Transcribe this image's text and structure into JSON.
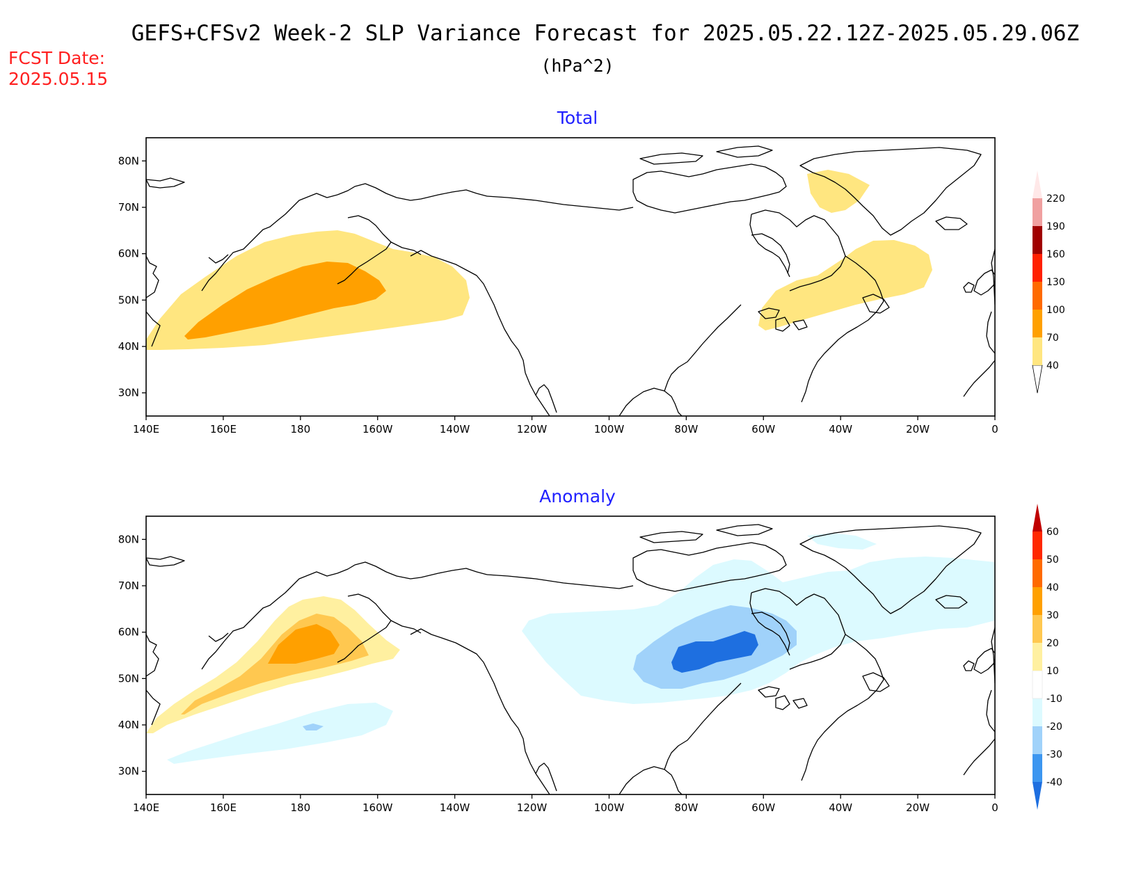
{
  "header": {
    "title": "GEFS+CFSv2 Week-2 SLP Variance Forecast for 2025.05.22.12Z-2025.05.29.06Z",
    "units": "(hPa^2)",
    "fcst_label": "FCST Date:",
    "fcst_date": "2025.05.15"
  },
  "axes": {
    "lon_labels": [
      "140E",
      "160E",
      "180",
      "160W",
      "140W",
      "120W",
      "100W",
      "80W",
      "60W",
      "40W",
      "20W",
      "0"
    ],
    "lat_labels": [
      "30N",
      "40N",
      "50N",
      "60N",
      "70N",
      "80N"
    ],
    "lon_range": [
      140,
      360
    ],
    "lat_range": [
      25,
      85
    ]
  },
  "panels": [
    {
      "title": "Total",
      "colorbar": {
        "labels": [
          "40",
          "70",
          "100",
          "130",
          "160",
          "190",
          "220"
        ],
        "colors": [
          "#ffe680",
          "#ffa000",
          "#ff6a00",
          "#ff2000",
          "#a00000",
          "#f0a0a0",
          "#ffe8e8"
        ]
      },
      "contours": [
        {
          "level": 40,
          "color": "#ffe680",
          "regions": [
            "North Pacific 40-60N",
            "North Atlantic 40-60N",
            "Greenland 70-77N"
          ]
        },
        {
          "level": 70,
          "color": "#ffa000",
          "regions": [
            "North Pacific 42-58N"
          ]
        }
      ]
    },
    {
      "title": "Anomaly",
      "colorbar": {
        "labels": [
          "-40",
          "-30",
          "-20",
          "-10",
          "10",
          "20",
          "30",
          "40",
          "50",
          "60"
        ],
        "colors": [
          "#1e6fe0",
          "#3c96f0",
          "#a0d2fa",
          "#dcfaff",
          "#ffffff",
          "#fff0a0",
          "#ffc850",
          "#ffa000",
          "#ff6a00",
          "#ff2800",
          "#c00000"
        ]
      },
      "contours": [
        {
          "level": 10,
          "color": "#fff0a0",
          "regions": [
            "North Pacific 38-65N"
          ]
        },
        {
          "level": 20,
          "color": "#ffc850",
          "regions": [
            "North Pacific 42-63N"
          ]
        },
        {
          "level": 30,
          "color": "#ffa000",
          "regions": [
            "North Pacific 53-61N"
          ]
        },
        {
          "level": -10,
          "color": "#dcfaff",
          "regions": [
            "Canada and North Atlantic",
            "North Pacific 30-42N"
          ]
        },
        {
          "level": -20,
          "color": "#a0d2fa",
          "regions": [
            "Hudson Bay region",
            "North Pacific 40N 175W"
          ]
        },
        {
          "level": -30,
          "color": "#1e6fe0",
          "regions": [
            "Quebec 52-58N"
          ]
        }
      ]
    }
  ]
}
